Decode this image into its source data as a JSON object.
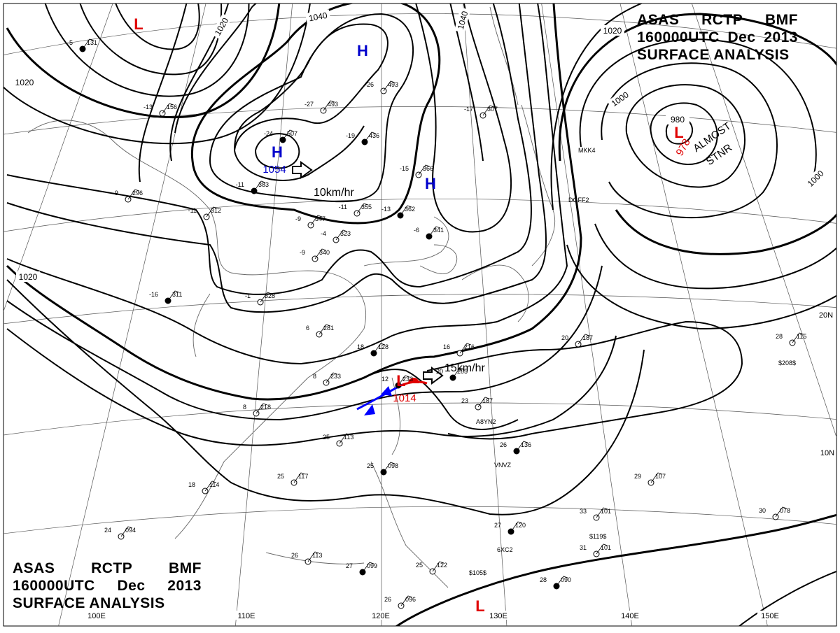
{
  "header": {
    "line1": [
      "ASAS",
      "RCTP",
      "BMF"
    ],
    "line2": [
      "160000UTC",
      "Dec",
      "2013"
    ],
    "line3": "SURFACE ANALYSIS"
  },
  "isobar_labels": [
    "1020",
    "1020",
    "1040",
    "1040",
    "1020",
    "1020",
    "1000",
    "980",
    "1000"
  ],
  "pressure_centers": [
    {
      "type": "L",
      "color": "#e00000"
    },
    {
      "type": "H",
      "color": "#0000cc"
    },
    {
      "type": "H",
      "color": "#0000cc",
      "value": "1054"
    },
    {
      "type": "H",
      "color": "#0000cc"
    },
    {
      "type": "L",
      "color": "#e00000",
      "value": "978"
    },
    {
      "type": "L",
      "color": "#e00000",
      "value": "1014"
    },
    {
      "type": "L",
      "color": "#e00000"
    }
  ],
  "motions": [
    "10km/hr",
    "15km/hr"
  ],
  "annotations": [
    "ALMOST",
    "STNR"
  ],
  "longitude_labels": [
    "100E",
    "110E",
    "120E",
    "130E",
    "140E",
    "150E"
  ],
  "latitude_labels": [
    "20N",
    "10N"
  ],
  "stations": [
    {
      "t": "-5",
      "p": "131"
    },
    {
      "t": "-13",
      "p": "156"
    },
    {
      "t": "-9",
      "p": "296"
    },
    {
      "t": "-24",
      "p": "507"
    },
    {
      "t": "-27",
      "p": "493"
    },
    {
      "t": "-26",
      "p": "493"
    },
    {
      "t": "-19",
      "p": "436"
    },
    {
      "t": "-15",
      "p": "366"
    },
    {
      "t": "-17",
      "p": "307"
    },
    {
      "t": "-11",
      "p": "383"
    },
    {
      "t": "-11",
      "p": "312"
    },
    {
      "t": "-11",
      "p": "355"
    },
    {
      "t": "-13",
      "p": "362"
    },
    {
      "t": "-9",
      "p": "347"
    },
    {
      "t": "-4",
      "p": "323"
    },
    {
      "t": "-6",
      "p": "341"
    },
    {
      "t": "-9",
      "p": "340"
    },
    {
      "t": "-1",
      "p": "328"
    },
    {
      "t": "-16",
      "p": "311"
    },
    {
      "t": "6",
      "p": "281"
    },
    {
      "t": "16",
      "p": "216"
    },
    {
      "t": "20",
      "p": "205"
    },
    {
      "t": "20",
      "p": "187"
    },
    {
      "t": "23",
      "p": "187"
    },
    {
      "t": "26",
      "p": "136"
    },
    {
      "t": "25",
      "p": "117"
    },
    {
      "t": "25",
      "p": "113"
    },
    {
      "t": "25",
      "p": "098"
    },
    {
      "t": "29",
      "p": "107"
    },
    {
      "t": "33",
      "p": "101"
    },
    {
      "t": "28",
      "p": "090"
    },
    {
      "t": "26",
      "p": "096"
    },
    {
      "t": "26",
      "p": "113"
    },
    {
      "t": "27",
      "p": "099"
    },
    {
      "t": "24",
      "p": "094"
    },
    {
      "t": "18",
      "p": "114"
    },
    {
      "t": "12",
      "p": "233"
    },
    {
      "t": "8",
      "p": "233"
    },
    {
      "t": "8",
      "p": "218"
    },
    {
      "t": "18",
      "p": "128"
    },
    {
      "t": "28",
      "p": "115"
    },
    {
      "t": "30",
      "p": "078"
    },
    {
      "t": "27",
      "p": "120"
    },
    {
      "t": "31",
      "p": "101"
    },
    {
      "t": "25",
      "p": "122"
    }
  ],
  "ship_ids": [
    "A8YN2",
    "VNVZ",
    "DGFF2",
    "MKK4",
    "$105$",
    "$119$",
    "$208$",
    "6XC2"
  ]
}
